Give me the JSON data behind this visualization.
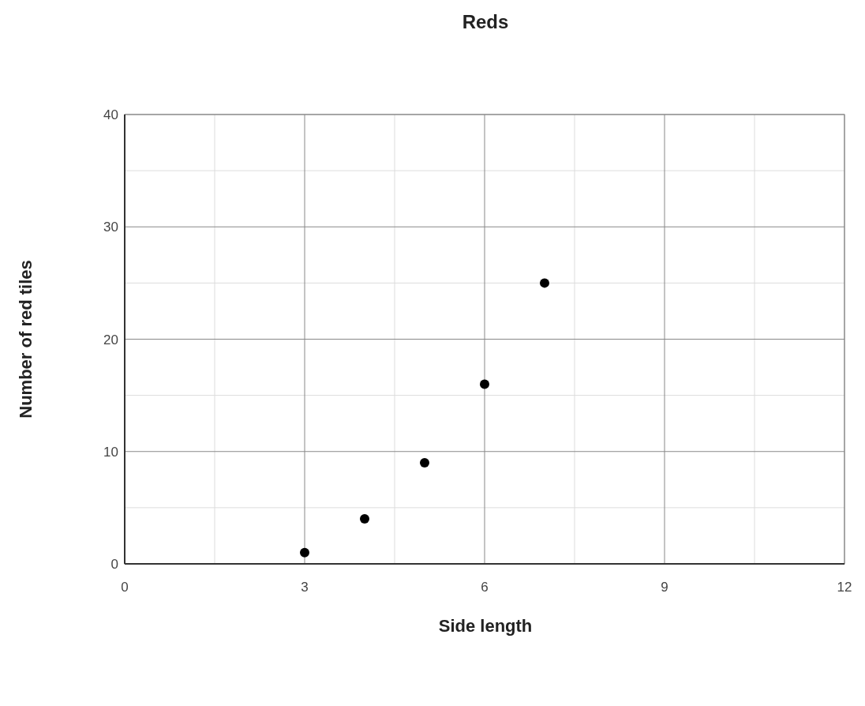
{
  "chart_data": {
    "type": "scatter",
    "title": "Reds",
    "xlabel": "Side length",
    "ylabel": "Number of red tiles",
    "x": [
      3,
      4,
      5,
      6,
      7
    ],
    "values": [
      1,
      4,
      9,
      16,
      25
    ],
    "color": "#000000",
    "marker": "circle",
    "grid": true,
    "xlim": [
      0,
      12
    ],
    "xticks": [
      0,
      3,
      6,
      9,
      12
    ],
    "ylim": [
      0,
      40
    ],
    "yticks": [
      0,
      10,
      20,
      30,
      40
    ]
  }
}
